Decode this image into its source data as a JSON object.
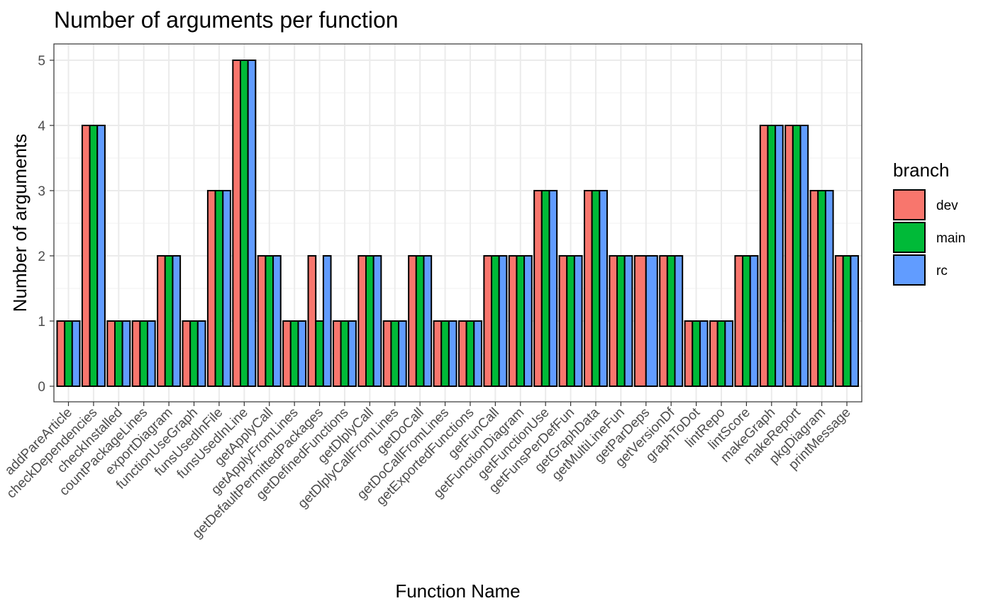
{
  "chart_data": {
    "type": "bar",
    "title": "Number of arguments per function",
    "xlabel": "Function Name",
    "ylabel": "Number of arguments",
    "ylim": [
      0,
      5
    ],
    "yticks": [
      "0",
      "1",
      "2",
      "3",
      "4",
      "5"
    ],
    "grid": true,
    "legend": {
      "title": "branch",
      "position": "right"
    },
    "categories": [
      "addPareArticle",
      "checkDependencies",
      "checkInstalled",
      "countPackageLines",
      "exportDiagram",
      "functionUseGraph",
      "funsUsedInFile",
      "funsUsedInLine",
      "getApplyCall",
      "getApplyFromLines",
      "getDefaultPermittedPackages",
      "getDefinedFunctions",
      "getDlplyCall",
      "getDlplyCallFromLines",
      "getDoCall",
      "getDoCallFromLines",
      "getExportedFunctions",
      "getFunCall",
      "getFunctionDiagram",
      "getFunctionUse",
      "getFunsPerDefFun",
      "getGraphData",
      "getMultiLineFun",
      "getParDeps",
      "getVersionDf",
      "graphToDot",
      "lintRepo",
      "lintScore",
      "makeGraph",
      "makeReport",
      "pkgDiagram",
      "printMessage"
    ],
    "series": [
      {
        "name": "dev",
        "color": "#F8766D",
        "values": [
          1,
          4,
          1,
          1,
          2,
          1,
          3,
          5,
          2,
          1,
          2,
          1,
          2,
          1,
          2,
          1,
          1,
          2,
          2,
          3,
          2,
          3,
          2,
          2,
          2,
          1,
          1,
          2,
          4,
          4,
          3,
          2
        ]
      },
      {
        "name": "main",
        "color": "#00BA38",
        "values": [
          1,
          4,
          1,
          1,
          2,
          1,
          3,
          5,
          2,
          1,
          1,
          1,
          2,
          1,
          2,
          1,
          1,
          2,
          2,
          3,
          2,
          3,
          2,
          null,
          2,
          1,
          1,
          2,
          4,
          4,
          3,
          2
        ]
      },
      {
        "name": "rc",
        "color": "#619CFF",
        "values": [
          1,
          4,
          1,
          1,
          2,
          1,
          3,
          5,
          2,
          1,
          2,
          1,
          2,
          1,
          2,
          1,
          1,
          2,
          2,
          3,
          2,
          3,
          2,
          2,
          2,
          1,
          1,
          2,
          4,
          4,
          3,
          2
        ]
      }
    ]
  }
}
